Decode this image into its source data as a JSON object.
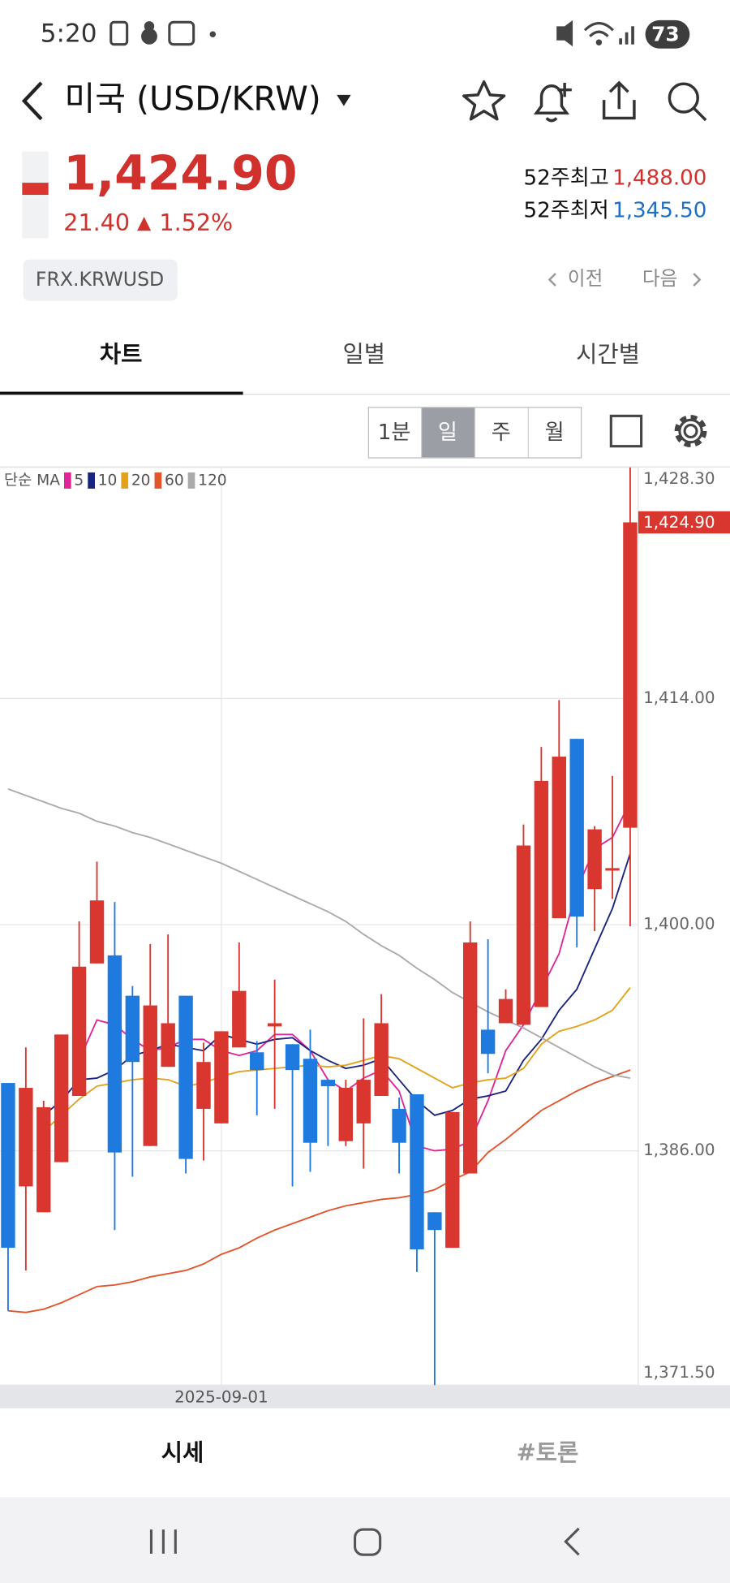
{
  "status_bar": {
    "time": "5:20",
    "battery": "73"
  },
  "header": {
    "title": "미국 (USD/KRW)"
  },
  "quote": {
    "price": "1,424.90",
    "change": "21.40",
    "change_arrow": "▲",
    "change_pct": "1.52%",
    "high_52w_label": "52주최고",
    "high_52w": "1,488.00",
    "low_52w_label": "52주최저",
    "low_52w": "1,345.50",
    "code": "FRX.KRWUSD",
    "prev": "이전",
    "next": "다음"
  },
  "tabs": [
    "차트",
    "일별",
    "시간별"
  ],
  "periods": [
    "1분",
    "일",
    "주",
    "월"
  ],
  "chart_data": {
    "type": "candlestick",
    "categories": [
      null,
      null,
      null,
      null,
      null,
      null,
      null,
      null,
      null,
      null,
      null,
      null,
      "2025-09-01",
      null,
      null,
      null,
      null,
      null,
      null,
      null,
      null,
      null,
      null,
      null,
      null,
      null,
      null,
      null,
      null,
      null,
      null,
      null,
      null,
      null,
      null,
      null
    ],
    "open": [
      1390.2,
      1383.8,
      1382.2,
      1385.3,
      1389.4,
      1397.6,
      1398.1,
      1395.6,
      1386.3,
      1391.2,
      1395.6,
      1388.6,
      1387.7,
      1392.4,
      1392.1,
      1393.7,
      1392.6,
      1391.7,
      1390.4,
      1386.6,
      1387.7,
      1389.4,
      1388.6,
      1389.5,
      1382.2,
      1380.0,
      1384.6,
      1393.5,
      1393.9,
      1393.8,
      1394.9,
      1400.4,
      1411.5,
      1402.2,
      1403.4,
      1406.0
    ],
    "high": [
      1390.2,
      1392.4,
      1389.1,
      1393.2,
      1400.2,
      1403.9,
      1401.4,
      1396.2,
      1398.8,
      1399.4,
      1395.6,
      1392.7,
      1393.4,
      1398.9,
      1392.8,
      1396.6,
      1392.6,
      1393.5,
      1390.4,
      1390.4,
      1394.2,
      1395.7,
      1389.3,
      1389.5,
      1382.2,
      1388.4,
      1400.2,
      1399.1,
      1396.0,
      1406.2,
      1411.0,
      1413.9,
      1411.5,
      1406.1,
      1409.2,
      1428.3
    ],
    "low": [
      1376.1,
      1378.6,
      1382.2,
      1385.3,
      1389.4,
      1397.6,
      1381.1,
      1384.4,
      1386.3,
      1391.2,
      1384.6,
      1385.4,
      1387.7,
      1392.4,
      1388.2,
      1388.6,
      1383.8,
      1384.7,
      1386.3,
      1386.3,
      1384.9,
      1389.4,
      1384.6,
      1378.5,
      1371.5,
      1380.0,
      1384.6,
      1390.8,
      1393.9,
      1393.8,
      1394.9,
      1400.4,
      1398.6,
      1399.6,
      1401.6,
      1399.9
    ],
    "close": [
      1380.0,
      1389.9,
      1388.7,
      1393.2,
      1397.4,
      1401.5,
      1385.9,
      1391.5,
      1395.0,
      1393.9,
      1385.5,
      1391.5,
      1393.4,
      1395.9,
      1391.0,
      1393.9,
      1391.0,
      1386.5,
      1390.0,
      1389.9,
      1390.4,
      1393.9,
      1386.5,
      1379.9,
      1381.1,
      1388.4,
      1398.9,
      1392.0,
      1395.4,
      1404.9,
      1408.9,
      1410.4,
      1400.5,
      1405.9,
      1403.5,
      1424.9
    ],
    "up_color": "#d9362f",
    "down_color": "#1f7ae0",
    "ylim": [
      1371.5,
      1428.3
    ],
    "yticks": [
      {
        "value": 1428.3,
        "label": "1,428.30"
      },
      {
        "value": 1414,
        "label": "1,414.00"
      },
      {
        "value": 1400,
        "label": "1,400.00"
      },
      {
        "value": 1386,
        "label": "1,386.00"
      },
      {
        "value": 1371.5,
        "label": "1,371.50"
      }
    ],
    "grid": true,
    "ma_label": "단순 MA",
    "ma_series": [
      {
        "name": "5",
        "color": "#e0249a",
        "values": [
          null,
          null,
          null,
          null,
          1391.6,
          1394.1,
          1393.8,
          1392.9,
          1392.2,
          1392.4,
          1392.9,
          1392.9,
          1392.2,
          1391.9,
          1392.2,
          1393.2,
          1393.2,
          1392.2,
          1390.4,
          1389.7,
          1390.5,
          1391.0,
          1389.7,
          1386.3,
          1386.0,
          1386.1,
          1386.6,
          1389.1,
          1392.2,
          1393.8,
          1396.0,
          1398.2,
          1402.2,
          1404.7,
          1405.4,
          1407.6
        ]
      },
      {
        "name": "10",
        "color": "#1a237e",
        "values": [
          null,
          null,
          1388.2,
          1389.1,
          1390.4,
          1390.5,
          1391.0,
          1391.9,
          1392.2,
          1392.6,
          1392.4,
          1392.2,
          1393.2,
          1392.9,
          1392.6,
          1392.9,
          1393.0,
          1392.2,
          1391.6,
          1391.1,
          1391.3,
          1391.7,
          1390.4,
          1389.1,
          1388.2,
          1388.5,
          1389.2,
          1389.4,
          1389.7,
          1391.6,
          1392.9,
          1394.7,
          1396.0,
          1398.5,
          1401.0,
          1404.4
        ]
      },
      {
        "name": "20",
        "color": "#e3a21a",
        "values": [
          null,
          null,
          1387.2,
          1388.2,
          1389.2,
          1390.0,
          1390.2,
          1390.4,
          1390.5,
          1390.4,
          1390.0,
          1390.2,
          1390.6,
          1390.9,
          1391.0,
          1391.1,
          1391.2,
          1391.3,
          1391.2,
          1391.3,
          1391.6,
          1391.9,
          1391.7,
          1391.1,
          1390.5,
          1389.9,
          1390.2,
          1390.4,
          1390.5,
          1391.1,
          1392.6,
          1393.4,
          1393.7,
          1394.1,
          1394.7,
          1396.1
        ]
      },
      {
        "name": "60",
        "color": "#e2542b",
        "values": [
          1376.1,
          1376.0,
          1376.2,
          1376.6,
          1377.1,
          1377.6,
          1377.7,
          1377.9,
          1378.2,
          1378.4,
          1378.6,
          1379.0,
          1379.6,
          1380.0,
          1380.6,
          1381.1,
          1381.5,
          1381.9,
          1382.3,
          1382.6,
          1382.8,
          1383.0,
          1383.1,
          1383.3,
          1383.6,
          1384.2,
          1384.7,
          1385.9,
          1386.7,
          1387.6,
          1388.5,
          1389.1,
          1389.7,
          1390.2,
          1390.6,
          1391.0
        ]
      },
      {
        "name": "120",
        "color": "#aaaaaa",
        "values": [
          1408.4,
          1408.0,
          1407.6,
          1407.2,
          1406.9,
          1406.4,
          1406.1,
          1405.7,
          1405.4,
          1405.0,
          1404.6,
          1404.2,
          1403.8,
          1403.3,
          1402.8,
          1402.3,
          1401.8,
          1401.3,
          1400.8,
          1400.2,
          1399.4,
          1398.7,
          1398.1,
          1397.3,
          1396.6,
          1395.8,
          1395.2,
          1394.6,
          1394.1,
          1393.6,
          1393.0,
          1392.4,
          1391.8,
          1391.2,
          1390.7,
          1390.5
        ]
      }
    ],
    "last_price": {
      "value": 1424.9,
      "label": "1,424.90"
    }
  },
  "bottom_tabs": [
    "시세",
    "#토론"
  ]
}
